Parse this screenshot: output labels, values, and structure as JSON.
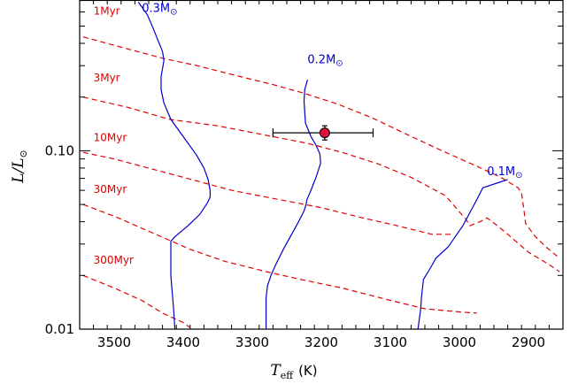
{
  "chart_data": {
    "type": "line",
    "xlabel": "T",
    "xlabel_sub": "eff",
    "xlabel_unit": "(K)",
    "ylabel": "L/L",
    "ylabel_sub": "⊙",
    "xlim": [
      3550,
      2850
    ],
    "ylim": [
      0.01,
      0.7
    ],
    "yscale": "log",
    "x_ticks": [
      3500,
      3400,
      3300,
      3200,
      3100,
      3000,
      2900
    ],
    "x_tick_labels": [
      "3500",
      "3400",
      "3300",
      "3200",
      "3100",
      "3000",
      "2900"
    ],
    "y_ticks": [
      0.01,
      0.1
    ],
    "y_tick_labels": [
      "0.01",
      "0.10"
    ],
    "colors": {
      "track": "#0000cc",
      "isochrone": "#e00000",
      "point": "#e0103c"
    },
    "mass_tracks": [
      {
        "label": "0.3M",
        "sub": "⊙",
        "label_at": [
          3460,
          0.6
        ],
        "points": [
          [
            3465,
            0.68
          ],
          [
            3452,
            0.58
          ],
          [
            3444,
            0.49
          ],
          [
            3437,
            0.42
          ],
          [
            3430,
            0.36
          ],
          [
            3428,
            0.32
          ],
          [
            3432,
            0.26
          ],
          [
            3432,
            0.22
          ],
          [
            3428,
            0.185
          ],
          [
            3418,
            0.15
          ],
          [
            3398,
            0.117
          ],
          [
            3381,
            0.095
          ],
          [
            3370,
            0.08
          ],
          [
            3364,
            0.069
          ],
          [
            3361,
            0.06
          ],
          [
            3361,
            0.055
          ],
          [
            3365,
            0.051
          ],
          [
            3376,
            0.044
          ],
          [
            3393,
            0.038
          ],
          [
            3412,
            0.033
          ],
          [
            3418,
            0.031
          ],
          [
            3418,
            0.02
          ],
          [
            3414,
            0.013
          ],
          [
            3412,
            0.01
          ]
        ]
      },
      {
        "label": "0.2M",
        "sub": "⊙",
        "label_at": [
          3220,
          0.31
        ],
        "points": [
          [
            3220,
            0.25
          ],
          [
            3224,
            0.22
          ],
          [
            3225,
            0.19
          ],
          [
            3224,
            0.165
          ],
          [
            3223,
            0.143
          ],
          [
            3215,
            0.12
          ],
          [
            3208,
            0.108
          ],
          [
            3202,
            0.096
          ],
          [
            3201,
            0.085
          ],
          [
            3207,
            0.072
          ],
          [
            3215,
            0.06
          ],
          [
            3221,
            0.053
          ],
          [
            3222,
            0.05
          ],
          [
            3225,
            0.046
          ],
          [
            3233,
            0.04
          ],
          [
            3243,
            0.034
          ],
          [
            3255,
            0.028
          ],
          [
            3266,
            0.023
          ],
          [
            3273,
            0.02
          ],
          [
            3278,
            0.0175
          ],
          [
            3280,
            0.015
          ],
          [
            3280,
            0.01
          ]
        ]
      },
      {
        "label": "0.1M",
        "sub": "⊙",
        "label_at": [
          2960,
          0.073
        ],
        "points": [
          [
            2930,
            0.069
          ],
          [
            2940,
            0.067
          ],
          [
            2966,
            0.062
          ],
          [
            2975,
            0.053
          ],
          [
            2995,
            0.038
          ],
          [
            3016,
            0.029
          ],
          [
            3034,
            0.025
          ],
          [
            3042,
            0.022
          ],
          [
            3052,
            0.019
          ],
          [
            3055,
            0.015
          ],
          [
            3056,
            0.013
          ],
          [
            3060,
            0.01
          ]
        ]
      }
    ],
    "isochrones": [
      {
        "label": "1Myr",
        "label_at": [
          3530,
          0.58
        ],
        "points": [
          [
            3545,
            0.435
          ],
          [
            3500,
            0.39
          ],
          [
            3430,
            0.33
          ],
          [
            3380,
            0.3
          ],
          [
            3325,
            0.265
          ],
          [
            3270,
            0.235
          ],
          [
            3225,
            0.21
          ],
          [
            3175,
            0.182
          ],
          [
            3125,
            0.152
          ],
          [
            3075,
            0.123
          ],
          [
            3025,
            0.1
          ],
          [
            2975,
            0.082
          ],
          [
            2940,
            0.071
          ],
          [
            2915,
            0.062
          ],
          [
            2910,
            0.058
          ],
          [
            2906,
            0.045
          ],
          [
            2904,
            0.039
          ],
          [
            2890,
            0.033
          ],
          [
            2875,
            0.029
          ],
          [
            2855,
            0.025
          ]
        ]
      },
      {
        "label": "3Myr",
        "label_at": [
          3530,
          0.245
        ],
        "points": [
          [
            3545,
            0.2
          ],
          [
            3480,
            0.175
          ],
          [
            3420,
            0.15
          ],
          [
            3350,
            0.138
          ],
          [
            3270,
            0.12
          ],
          [
            3220,
            0.11
          ],
          [
            3170,
            0.098
          ],
          [
            3120,
            0.085
          ],
          [
            3070,
            0.071
          ],
          [
            3020,
            0.056
          ],
          [
            2990,
            0.041
          ],
          [
            2985,
            0.038
          ],
          [
            2970,
            0.04
          ],
          [
            2960,
            0.042
          ],
          [
            2945,
            0.038
          ],
          [
            2930,
            0.034
          ],
          [
            2900,
            0.027
          ],
          [
            2870,
            0.023
          ],
          [
            2855,
            0.021
          ]
        ]
      },
      {
        "label": "10Myr",
        "label_at": [
          3530,
          0.113
        ],
        "points": [
          [
            3545,
            0.098
          ],
          [
            3500,
            0.09
          ],
          [
            3440,
            0.078
          ],
          [
            3400,
            0.071
          ],
          [
            3330,
            0.06
          ],
          [
            3280,
            0.055
          ],
          [
            3200,
            0.048
          ],
          [
            3140,
            0.042
          ],
          [
            3090,
            0.038
          ],
          [
            3040,
            0.034
          ],
          [
            3010,
            0.034
          ]
        ]
      },
      {
        "label": "30Myr",
        "label_at": [
          3530,
          0.058
        ],
        "points": [
          [
            3545,
            0.05
          ],
          [
            3500,
            0.043
          ],
          [
            3440,
            0.034
          ],
          [
            3390,
            0.028
          ],
          [
            3340,
            0.024
          ],
          [
            3280,
            0.021
          ],
          [
            3230,
            0.019
          ],
          [
            3170,
            0.017
          ],
          [
            3100,
            0.0145
          ],
          [
            3050,
            0.013
          ],
          [
            3000,
            0.0125
          ],
          [
            2975,
            0.0123
          ]
        ]
      },
      {
        "label": "300Myr",
        "label_at": [
          3530,
          0.0233
        ],
        "points": [
          [
            3545,
            0.02
          ],
          [
            3500,
            0.017
          ],
          [
            3460,
            0.0145
          ],
          [
            3430,
            0.0123
          ],
          [
            3400,
            0.0109
          ],
          [
            3390,
            0.0102
          ]
        ]
      }
    ],
    "data_point": {
      "x": 3195,
      "y": 0.126,
      "x_err": [
        75,
        70
      ],
      "y_err": [
        0.011,
        0.012
      ]
    }
  }
}
